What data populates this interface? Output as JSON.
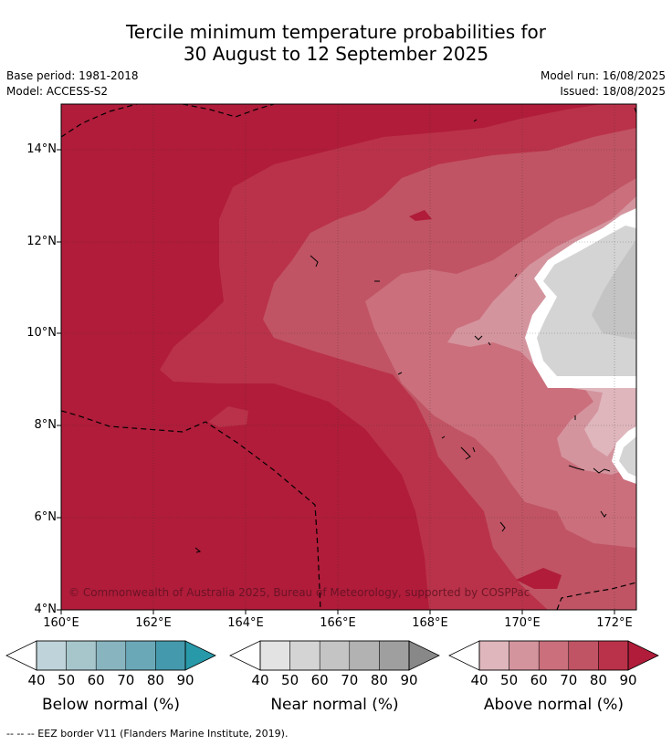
{
  "title_line1": "Tercile minimum temperature probabilities for",
  "title_line2": "30 August to 12 September 2025",
  "base_period": "Base period: 1981-2018",
  "model": "Model: ACCESS-S2",
  "model_run": "Model run: 16/08/2025",
  "issued": "Issued: 18/08/2025",
  "map": {
    "lon_ticks": [
      "160°E",
      "162°E",
      "164°E",
      "166°E",
      "168°E",
      "170°E",
      "172°E"
    ],
    "lat_ticks": [
      "14°N",
      "12°N",
      "10°N",
      "8°N",
      "6°N",
      "4°N"
    ],
    "copyright": "© Commonwealth of Australia 2025, Bureau of Meteorology, supported by COSPPac"
  },
  "colorbars": [
    {
      "label": "Below normal (%)",
      "ticks": [
        "40",
        "50",
        "60",
        "70",
        "80",
        "90"
      ],
      "colors": [
        "#ffffff",
        "#bfd4da",
        "#a6c6cc",
        "#88b4bf",
        "#6aa8b8",
        "#4599ac",
        "#2899a8"
      ]
    },
    {
      "label": "Near normal (%)",
      "ticks": [
        "40",
        "50",
        "60",
        "70",
        "80",
        "90"
      ],
      "colors": [
        "#ffffff",
        "#e3e3e3",
        "#d4d4d4",
        "#c4c4c4",
        "#b2b2b2",
        "#9f9f9f",
        "#888888"
      ]
    },
    {
      "label": "Above normal (%)",
      "ticks": [
        "40",
        "50",
        "60",
        "70",
        "80",
        "90"
      ],
      "colors": [
        "#ffffff",
        "#deb6bc",
        "#d4949e",
        "#cb6f7c",
        "#c05464",
        "#ba3249",
        "#b01c3a"
      ]
    }
  ],
  "footer": "-- -- -- EEZ border V11 (Flanders Marine Institute, 2019)."
}
